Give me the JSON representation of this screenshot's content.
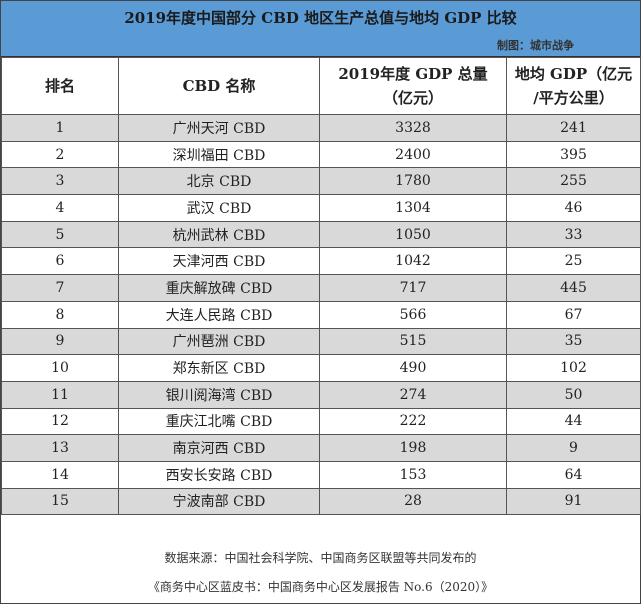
{
  "title": "2019年度中国部分 CBD 地区生产总值与地均 GDP 比较",
  "credit": "制图：城市战争",
  "headers": [
    "排名",
    "CBD 名称",
    "2019年度 GDP 总量（亿元）",
    "地均 GDP（亿元/平方公里）"
  ],
  "header_lines": {
    "gdp1": "2019年度 GDP 总量",
    "gdp2": "（亿元）",
    "den1": "地均 GDP（亿元",
    "den2": "/平方公里）"
  },
  "rows": [
    {
      "rank": "1",
      "name": "广州天河 CBD",
      "gdp": "3328",
      "density": "241"
    },
    {
      "rank": "2",
      "name": "深圳福田 CBD",
      "gdp": "2400",
      "density": "395"
    },
    {
      "rank": "3",
      "name": "北京 CBD",
      "gdp": "1780",
      "density": "255"
    },
    {
      "rank": "4",
      "name": "武汉 CBD",
      "gdp": "1304",
      "density": "46"
    },
    {
      "rank": "5",
      "name": "杭州武林 CBD",
      "gdp": "1050",
      "density": "33"
    },
    {
      "rank": "6",
      "name": "天津河西 CBD",
      "gdp": "1042",
      "density": "25"
    },
    {
      "rank": "7",
      "name": "重庆解放碑 CBD",
      "gdp": "717",
      "density": "445"
    },
    {
      "rank": "8",
      "name": "大连人民路 CBD",
      "gdp": "566",
      "density": "67"
    },
    {
      "rank": "9",
      "name": "广州琶洲 CBD",
      "gdp": "515",
      "density": "35"
    },
    {
      "rank": "10",
      "name": "郑东新区 CBD",
      "gdp": "490",
      "density": "102"
    },
    {
      "rank": "11",
      "name": "银川阅海湾 CBD",
      "gdp": "274",
      "density": "50"
    },
    {
      "rank": "12",
      "name": "重庆江北嘴 CBD",
      "gdp": "222",
      "density": "44"
    },
    {
      "rank": "13",
      "name": "南京河西 CBD",
      "gdp": "198",
      "density": "9"
    },
    {
      "rank": "14",
      "name": "西安长安路 CBD",
      "gdp": "153",
      "density": "64"
    },
    {
      "rank": "15",
      "name": "宁波南部 CBD",
      "gdp": "28",
      "density": "91"
    }
  ],
  "footer": {
    "line1": "数据来源：中国社会科学院、中国商务区联盟等共同发布的",
    "line2": "《商务中心区蓝皮书：中国商务中心区发展报告 No.6（2020）》"
  },
  "colors": {
    "title_bg": "#5b9bd5",
    "stripe": "#d9d9d9"
  }
}
